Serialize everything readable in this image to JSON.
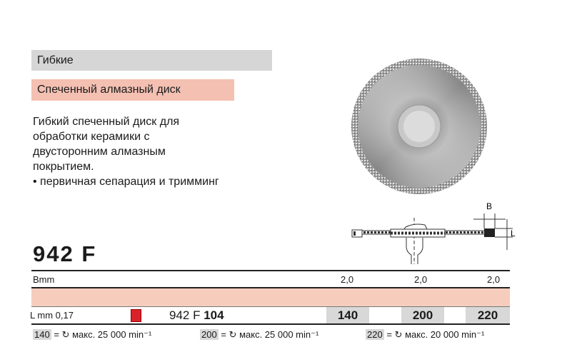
{
  "category": "Гибкие",
  "subtitle": "Спеченный алмазный диск",
  "description": [
    "Гибкий спеченный диск для",
    "обработки керамики с",
    "двусторонним алмазным",
    "покрытием.",
    "• первичная сепарация и тримминг"
  ],
  "model": "942 F",
  "diagram": {
    "label_b": "B",
    "label_l": "L"
  },
  "table": {
    "b_label": "Bmm",
    "b_values": [
      "2,0",
      "2,0",
      "2,0"
    ],
    "l_label": "L mm 0,17",
    "color_code": "#d8232a",
    "article_prefix": "942 F",
    "article_size": "104",
    "sizes": [
      "140",
      "200",
      "220"
    ]
  },
  "speeds": [
    {
      "size": "140",
      "eq": "=",
      "text": "макс. 25 000 min⁻¹"
    },
    {
      "size": "200",
      "eq": "=",
      "text": "макс. 25 000 min⁻¹"
    },
    {
      "size": "220",
      "eq": "=",
      "text": "макс. 20 000 min⁻¹"
    }
  ]
}
